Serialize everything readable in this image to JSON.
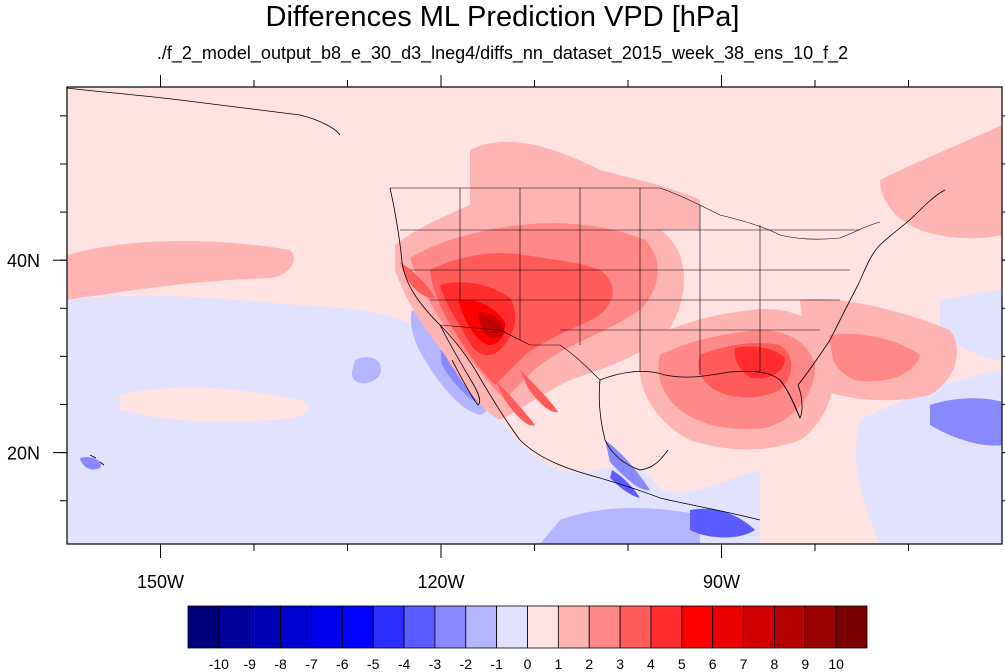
{
  "title": "Differences ML Prediction VPD [hPa]",
  "subtitle": "./f_2_model_output_b8_e_30_d3_lneg4/diffs_nn_dataset_2015_week_38_ens_10_f_2",
  "map": {
    "lon_range": [
      -160,
      -60
    ],
    "lat_range": [
      10.5,
      58
    ],
    "lon_ticks": [
      {
        "value": -150,
        "label": "150W"
      },
      {
        "value": -120,
        "label": "120W"
      },
      {
        "value": -90,
        "label": "90W"
      }
    ],
    "lat_ticks": [
      {
        "value": 40,
        "label": "40N"
      },
      {
        "value": 20,
        "label": "20N"
      }
    ],
    "lon_minor_step": 10,
    "lat_minor_step": 5
  },
  "colorbar": {
    "labels": [
      "-10",
      "-9",
      "-8",
      "-7",
      "-6",
      "-5",
      "-4",
      "-3",
      "-2",
      "-1",
      "0",
      "1",
      "2",
      "3",
      "4",
      "5",
      "6",
      "7",
      "8",
      "9",
      "10"
    ],
    "colors": [
      "#00007d",
      "#00009a",
      "#0000b5",
      "#0000d0",
      "#0000ea",
      "#0000ff",
      "#2d2dff",
      "#5b5bff",
      "#8888ff",
      "#b4b4ff",
      "#e2e2ff",
      "#ffe2e2",
      "#ffb4b4",
      "#ff8888",
      "#ff5b5b",
      "#ff2d2d",
      "#ff0000",
      "#ea0000",
      "#d00000",
      "#b50000",
      "#9a0000",
      "#7d0000"
    ]
  }
}
